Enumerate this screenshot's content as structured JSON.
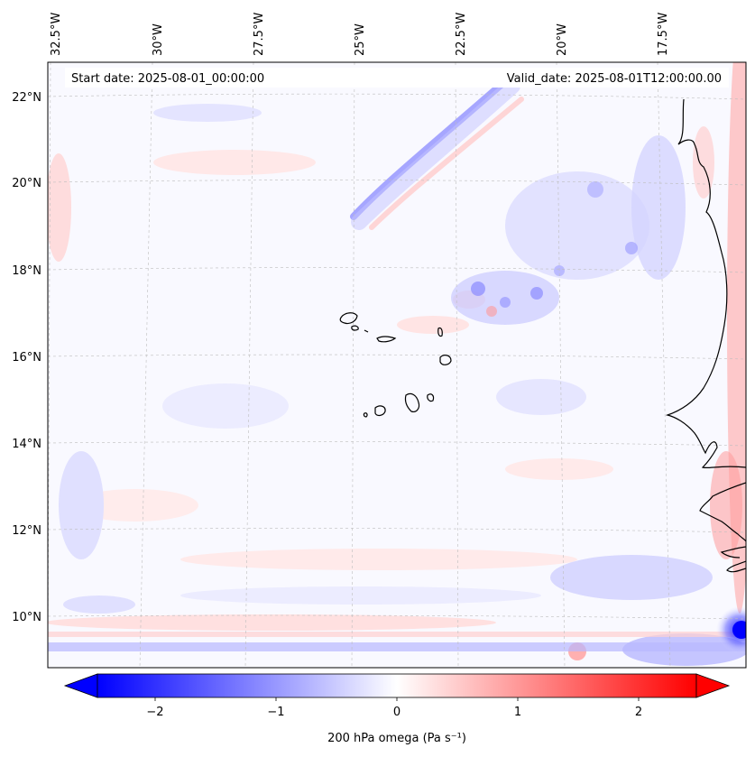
{
  "header": {
    "start_date": "Start date: 2025-08-01_00:00:00",
    "valid_date": "Valid_date: 2025-08-01T12:00:00.00"
  },
  "axes": {
    "lon_labels": [
      "32.5°W",
      "30°W",
      "27.5°W",
      "25°W",
      "22.5°W",
      "20°W",
      "17.5°W"
    ],
    "lat_labels": [
      "22°N",
      "20°N",
      "18°N",
      "16°N",
      "14°N",
      "12°N",
      "10°N"
    ]
  },
  "colorbar": {
    "ticks": [
      "−2",
      "−1",
      "0",
      "1",
      "2"
    ],
    "label": "200 hPa omega (Pa s⁻¹)",
    "min_color": "#0000ff",
    "mid_color": "#ffffff",
    "max_color": "#ff0000"
  },
  "chart_data": {
    "type": "heatmap",
    "variable": "200 hPa omega",
    "units": "Pa s⁻¹",
    "colormap": "bwr",
    "vmin": -2.6,
    "vmax": 2.6,
    "lon_range": [
      -33,
      -15
    ],
    "lat_range": [
      9,
      22.8
    ],
    "extend": "both",
    "grid": true
  }
}
